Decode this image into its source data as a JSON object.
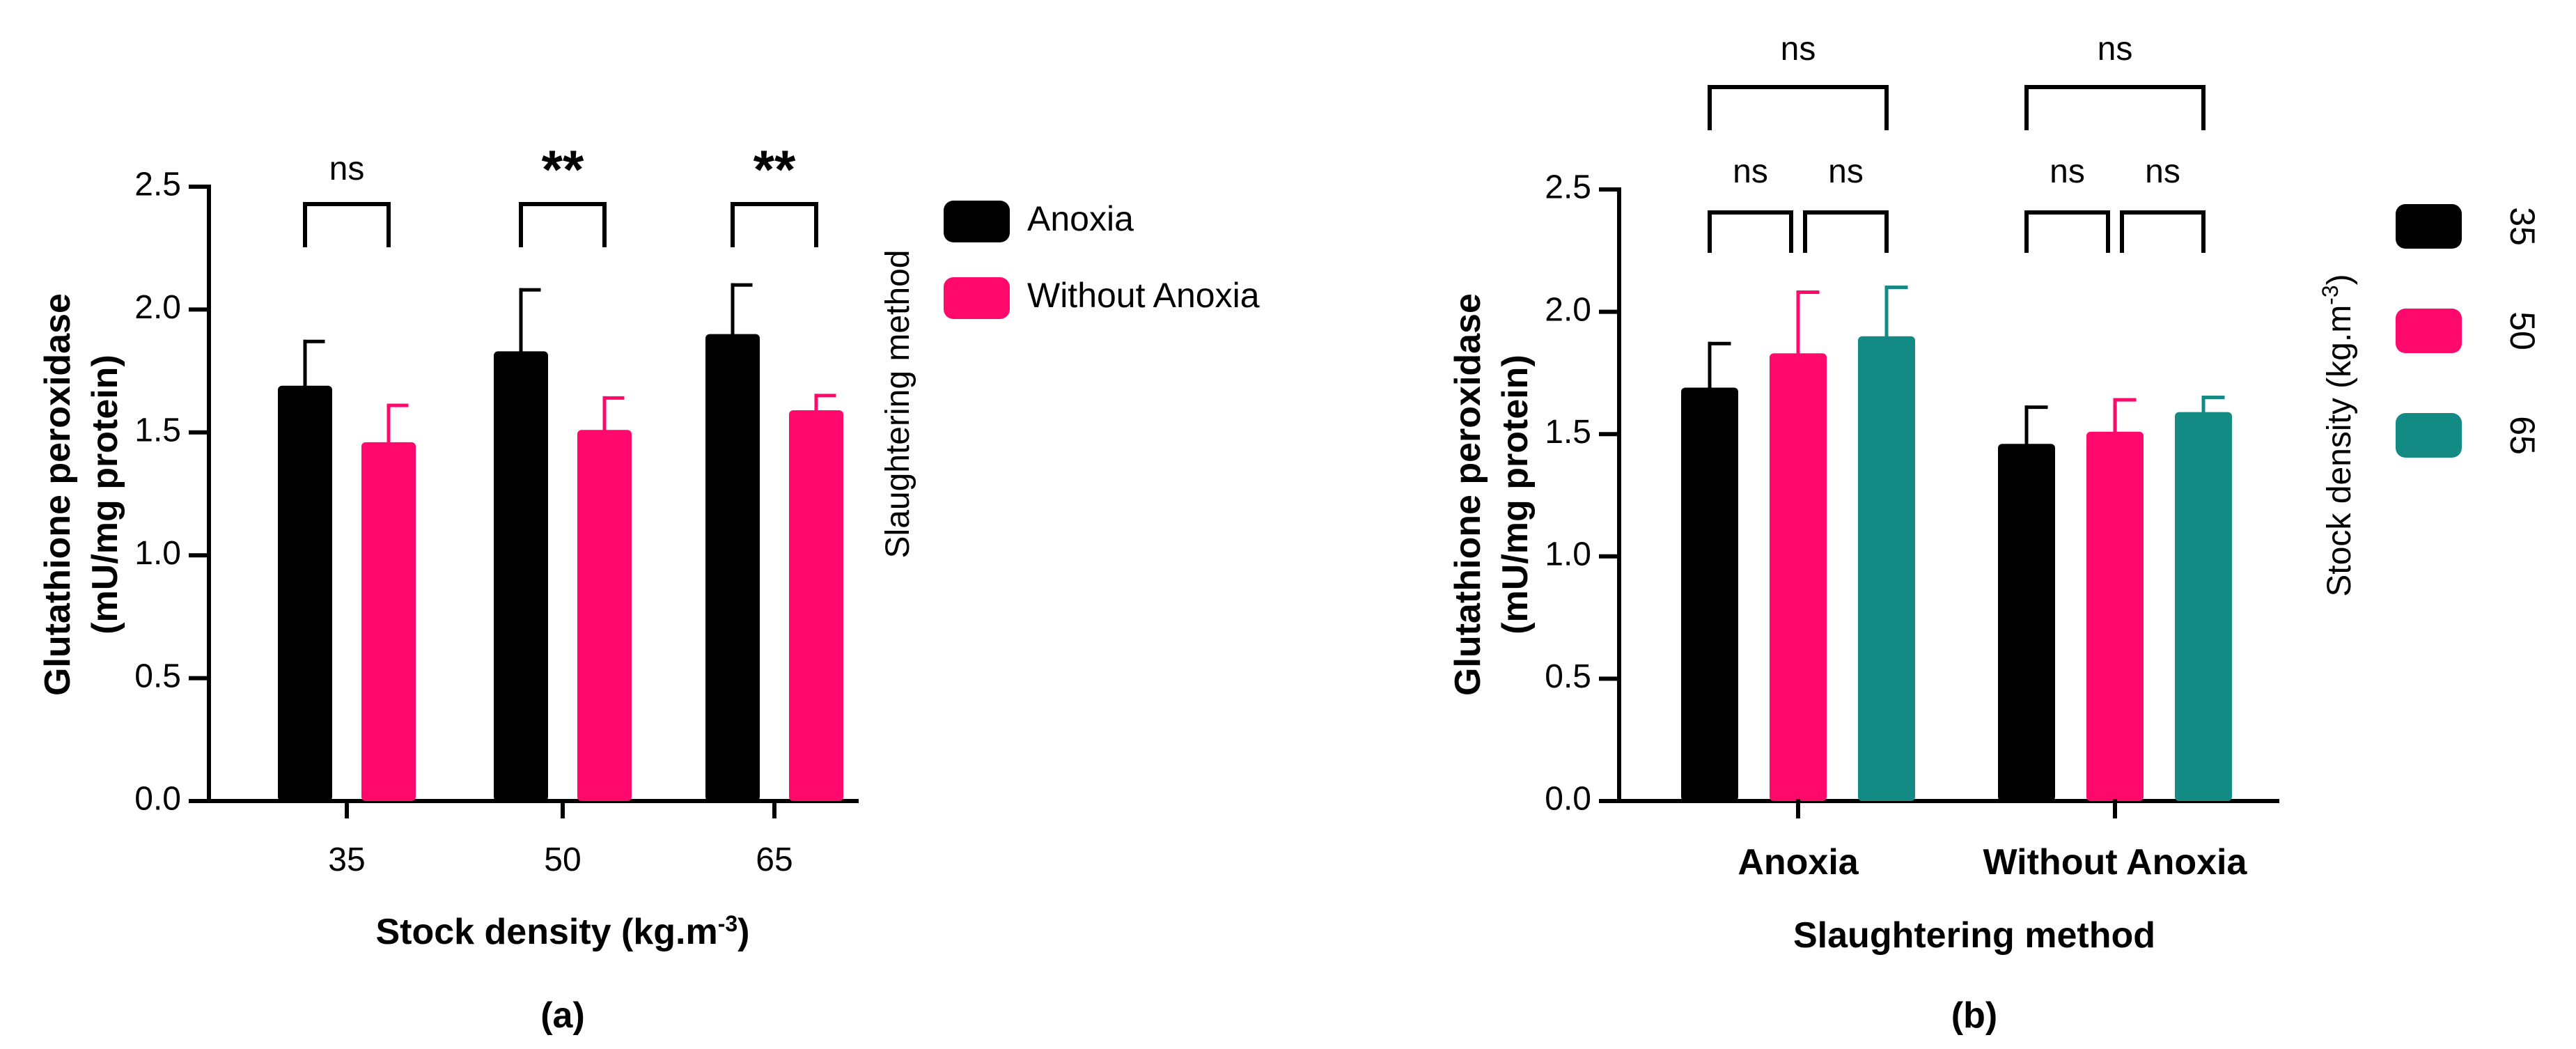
{
  "colors": {
    "black": "#000000",
    "pink": "#ff0a6c",
    "teal": "#138a84"
  },
  "chart_data": [
    {
      "type": "bar",
      "panel_label": "(a)",
      "xlabel": "Stock density (kg.m",
      "xlabel_sup": "-3",
      "xlabel_end": ")",
      "ylabel_line1": "Glutathione peroxidase",
      "ylabel_line2": "(mU/mg protein)",
      "ylim": [
        0,
        2.5
      ],
      "yticks": [
        "0.0",
        "0.5",
        "1.0",
        "1.5",
        "2.0",
        "2.5"
      ],
      "categories": [
        "35",
        "50",
        "65"
      ],
      "legend_title": "Slaughtering method",
      "series": [
        {
          "name": "Anoxia",
          "color": "#000000",
          "values": [
            1.69,
            1.83,
            1.9
          ],
          "errors": [
            0.18,
            0.25,
            0.2
          ]
        },
        {
          "name": "Without Anoxia",
          "color": "#ff0a6c",
          "values": [
            1.46,
            1.51,
            1.59
          ],
          "errors": [
            0.15,
            0.13,
            0.06
          ]
        }
      ],
      "significance": [
        "ns",
        "**",
        "**"
      ]
    },
    {
      "type": "bar",
      "panel_label": "(b)",
      "xlabel": "Slaughtering method",
      "ylabel_line1": "Glutathione peroxidase",
      "ylabel_line2": "(mU/mg protein)",
      "ylim": [
        0,
        2.5
      ],
      "yticks": [
        "0.0",
        "0.5",
        "1.0",
        "1.5",
        "2.0",
        "2.5"
      ],
      "categories": [
        "Anoxia",
        "Without Anoxia"
      ],
      "legend_title": "Stock density (kg.m",
      "legend_title_sup": "-3",
      "legend_title_end": ")",
      "series": [
        {
          "name": "35",
          "color": "#000000",
          "values": [
            1.69,
            1.46
          ],
          "errors": [
            0.18,
            0.15
          ]
        },
        {
          "name": "50",
          "color": "#ff0a6c",
          "values": [
            1.83,
            1.51
          ],
          "errors": [
            0.25,
            0.13
          ]
        },
        {
          "name": "65",
          "color": "#138a84",
          "values": [
            1.9,
            1.59
          ],
          "errors": [
            0.2,
            0.06
          ]
        }
      ],
      "significance_outer": [
        "ns",
        "ns"
      ],
      "significance_inner": [
        [
          "ns",
          "ns"
        ],
        [
          "ns",
          "ns"
        ]
      ]
    }
  ]
}
